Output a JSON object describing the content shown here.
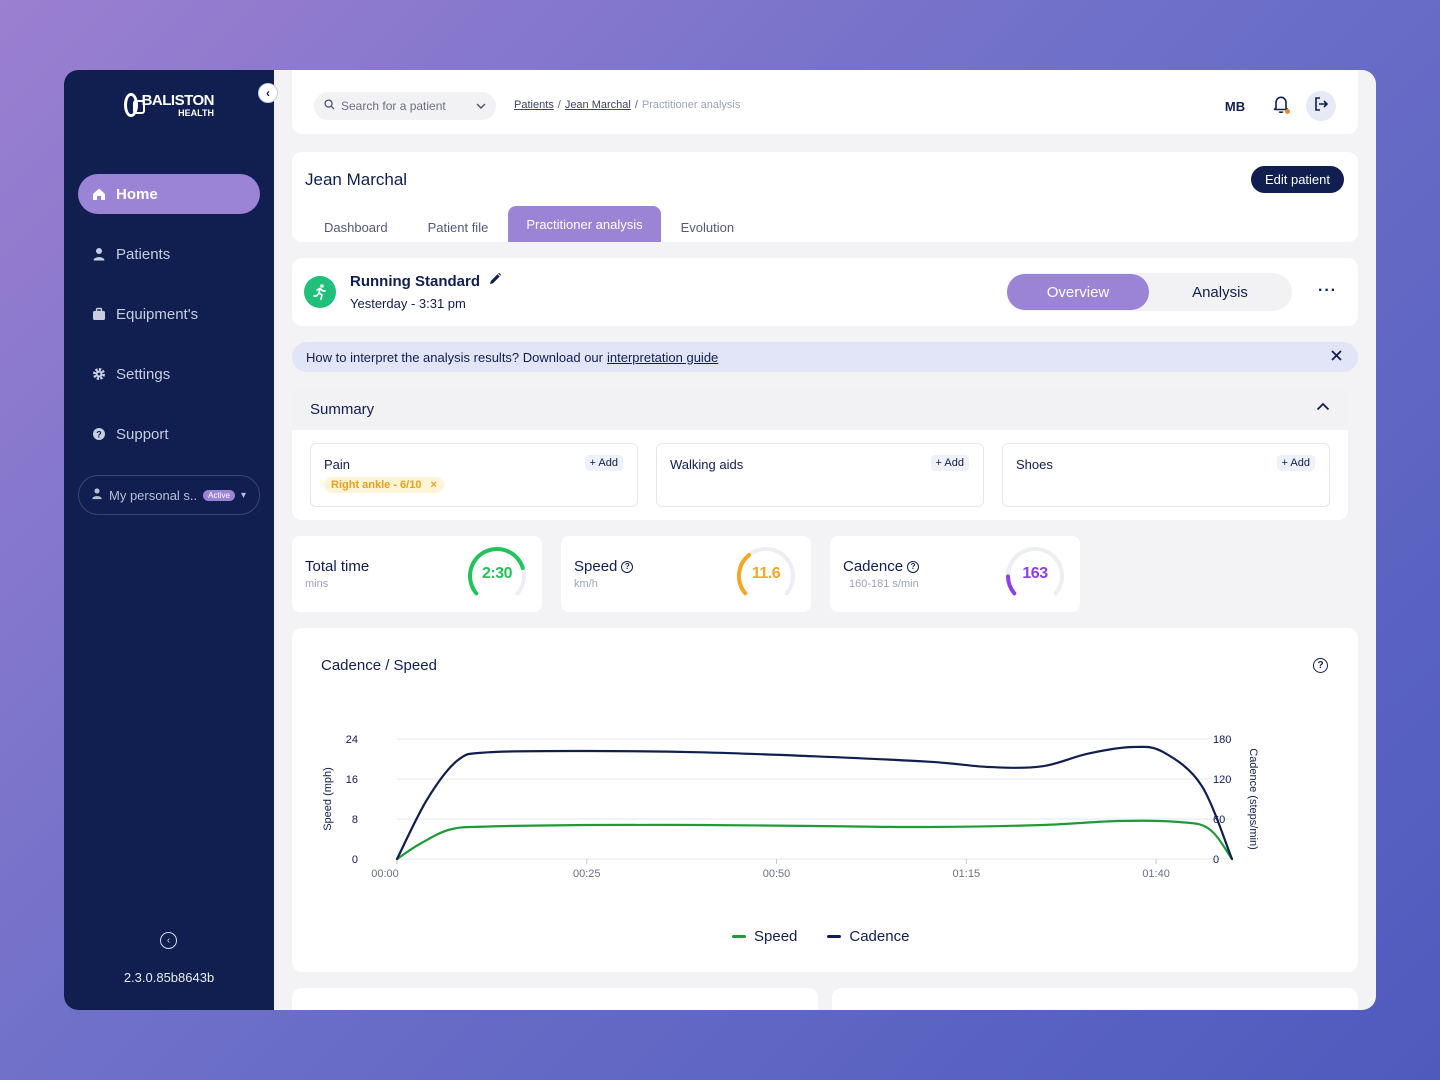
{
  "sidebar": {
    "logo": {
      "line1": "BALISTON",
      "line2": "HEALTH"
    },
    "items": [
      {
        "label": "Home",
        "icon": "home-icon",
        "active": true
      },
      {
        "label": "Patients",
        "icon": "user-icon",
        "active": false
      },
      {
        "label": "Equipment's",
        "icon": "briefcase-icon",
        "active": false
      },
      {
        "label": "Settings",
        "icon": "gear-icon",
        "active": false
      },
      {
        "label": "Support",
        "icon": "help-icon",
        "active": false
      }
    ],
    "workspace": {
      "label": "My personal s..",
      "badge": "Active"
    },
    "version": "2.3.0.85b8643b"
  },
  "topbar": {
    "search_placeholder": "Search for a patient",
    "breadcrumb": {
      "patients": "Patients",
      "patient": "Jean Marchal",
      "current": "Practitioner analysis"
    },
    "avatar": "MB"
  },
  "patient": {
    "name": "Jean Marchal",
    "edit_label": "Edit patient",
    "tabs": [
      "Dashboard",
      "Patient file",
      "Practitioner analysis",
      "Evolution"
    ],
    "active_tab": "Practitioner analysis"
  },
  "session": {
    "title": "Running Standard",
    "date": "Yesterday - 3:31 pm",
    "views": [
      "Overview",
      "Analysis"
    ],
    "active_view": "Overview",
    "more": "···"
  },
  "banner": {
    "text": "How to interpret the analysis results? Download our",
    "link": "interpretation guide"
  },
  "summary": {
    "title": "Summary",
    "boxes": [
      {
        "label": "Pain",
        "add": "+ Add",
        "tags": [
          "Right ankle - 6/10"
        ]
      },
      {
        "label": "Walking aids",
        "add": "+ Add",
        "tags": []
      },
      {
        "label": "Shoes",
        "add": "+ Add",
        "tags": []
      }
    ],
    "tag_close": "×"
  },
  "metrics": [
    {
      "title": "Total time",
      "sub": "mins",
      "value": "2:30",
      "help": false,
      "color": "#21c45a",
      "fraction": 0.78
    },
    {
      "title": "Speed",
      "sub": "km/h",
      "value": "11.6",
      "help": true,
      "color": "#f5a623",
      "fraction": 0.35
    },
    {
      "title": "Cadence",
      "sub": "160-181 s/min",
      "value": "163",
      "help": true,
      "color": "#8e3fe0",
      "fraction": 0.15
    }
  ],
  "chart_data": {
    "type": "line",
    "title": "Cadence / Speed",
    "xlabel": "",
    "ylabel_left": "Speed (mph)",
    "ylabel_right": "Cadence (steps/min)",
    "x_ticks": [
      "00:00",
      "00:25",
      "00:50",
      "01:15",
      "01:40"
    ],
    "y_left_ticks": [
      0,
      8,
      16,
      24
    ],
    "y_right_ticks": [
      0,
      60,
      120,
      180
    ],
    "y_left_range": [
      0,
      24
    ],
    "y_right_range": [
      0,
      180
    ],
    "x_range_seconds": [
      0,
      110
    ],
    "series": [
      {
        "name": "Speed",
        "axis": "left",
        "color": "#1f9a3a",
        "points": [
          [
            0,
            0
          ],
          [
            3,
            3
          ],
          [
            7,
            5.9
          ],
          [
            12,
            6.5
          ],
          [
            25,
            6.8
          ],
          [
            40,
            6.8
          ],
          [
            55,
            6.6
          ],
          [
            70,
            6.4
          ],
          [
            85,
            6.8
          ],
          [
            95,
            7.6
          ],
          [
            103,
            7.4
          ],
          [
            107,
            6.0
          ],
          [
            110,
            0
          ]
        ]
      },
      {
        "name": "Cadence",
        "axis": "right",
        "color": "#101e50",
        "points": [
          [
            0,
            0
          ],
          [
            4,
            90
          ],
          [
            8,
            148
          ],
          [
            12,
            160
          ],
          [
            25,
            162
          ],
          [
            40,
            160
          ],
          [
            55,
            154
          ],
          [
            70,
            146
          ],
          [
            78,
            138
          ],
          [
            85,
            139
          ],
          [
            91,
            158
          ],
          [
            97,
            168
          ],
          [
            101,
            160
          ],
          [
            106,
            110
          ],
          [
            110,
            0
          ]
        ]
      }
    ],
    "legend": [
      "Speed",
      "Cadence"
    ],
    "legend_position": "bottom-center",
    "grid": true
  }
}
